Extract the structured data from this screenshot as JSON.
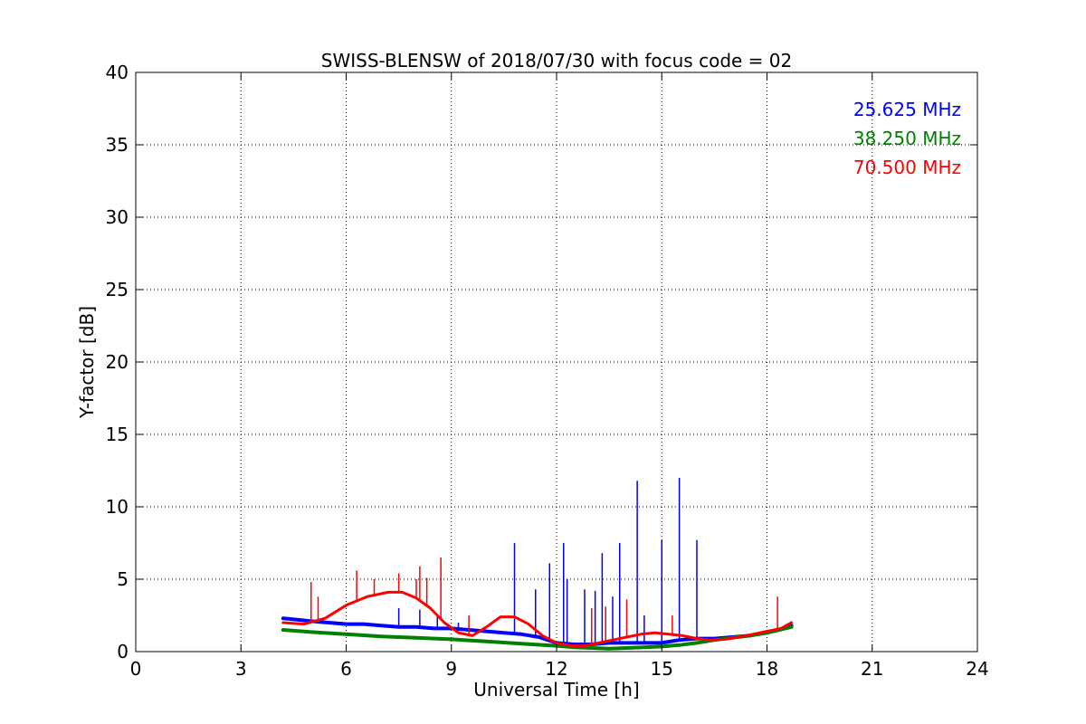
{
  "chart_data": {
    "type": "line",
    "title": "SWISS-BLENSW of 2018/07/30 with focus code = 02",
    "xlabel": "Universal Time [h]",
    "ylabel": "Y-factor [dB]",
    "xlim": [
      0,
      24
    ],
    "ylim": [
      0,
      40
    ],
    "xticks": [
      "0",
      "3",
      "6",
      "9",
      "12",
      "15",
      "18",
      "21",
      "24"
    ],
    "yticks": [
      "0",
      "5",
      "10",
      "15",
      "20",
      "25",
      "30",
      "35",
      "40"
    ],
    "grid": true,
    "grid_style": "dotted",
    "legend_position": "top-right",
    "series": [
      {
        "name": "25.625 MHz",
        "color": "#0000ff",
        "x": [
          4.2,
          4.6,
          5.0,
          5.5,
          6.0,
          6.5,
          7.0,
          7.5,
          8.0,
          8.5,
          9.0,
          9.5,
          10.0,
          10.5,
          11.0,
          11.5,
          12.0,
          12.5,
          13.0,
          13.5,
          14.0,
          14.5,
          15.0,
          15.5,
          16.0,
          16.5,
          17.0,
          17.5,
          18.0,
          18.5,
          18.7
        ],
        "y": [
          2.3,
          2.2,
          2.1,
          2.0,
          1.9,
          1.9,
          1.8,
          1.7,
          1.7,
          1.6,
          1.6,
          1.5,
          1.4,
          1.3,
          1.2,
          1.0,
          0.6,
          0.5,
          0.5,
          0.6,
          0.6,
          0.6,
          0.6,
          0.8,
          0.9,
          0.9,
          1.0,
          1.1,
          1.3,
          1.6,
          1.8
        ],
        "spikes": [
          [
            7.5,
            3.0
          ],
          [
            8.1,
            2.9
          ],
          [
            8.6,
            2.4
          ],
          [
            9.2,
            2.0
          ],
          [
            10.8,
            7.5
          ],
          [
            11.4,
            4.3
          ],
          [
            11.8,
            6.1
          ],
          [
            12.2,
            7.5
          ],
          [
            12.3,
            5.0
          ],
          [
            12.8,
            4.3
          ],
          [
            13.1,
            4.2
          ],
          [
            13.3,
            6.8
          ],
          [
            13.6,
            3.8
          ],
          [
            13.8,
            7.5
          ],
          [
            14.3,
            11.8
          ],
          [
            14.5,
            2.5
          ],
          [
            15.0,
            7.7
          ],
          [
            15.5,
            12.0
          ],
          [
            16.0,
            7.7
          ]
        ]
      },
      {
        "name": "38.250 MHz",
        "color": "#008000",
        "x": [
          4.2,
          5.0,
          6.0,
          7.0,
          8.0,
          9.0,
          10.0,
          11.0,
          12.0,
          12.5,
          13.0,
          13.5,
          14.0,
          14.5,
          15.0,
          15.5,
          16.0,
          16.5,
          17.0,
          17.5,
          18.0,
          18.7
        ],
        "y": [
          1.5,
          1.35,
          1.2,
          1.05,
          0.95,
          0.85,
          0.7,
          0.55,
          0.4,
          0.3,
          0.25,
          0.2,
          0.25,
          0.3,
          0.35,
          0.45,
          0.6,
          0.8,
          0.95,
          1.1,
          1.3,
          1.7
        ],
        "spikes": []
      },
      {
        "name": "70.500 MHz",
        "color": "#ff0000",
        "x": [
          4.2,
          4.8,
          5.4,
          6.0,
          6.6,
          7.2,
          7.6,
          8.0,
          8.4,
          8.8,
          9.2,
          9.6,
          10.0,
          10.4,
          10.8,
          11.2,
          11.6,
          12.0,
          12.4,
          12.8,
          13.2,
          13.6,
          14.0,
          14.4,
          14.8,
          15.2,
          15.6,
          16.0,
          16.4,
          16.8,
          17.2,
          17.6,
          18.0,
          18.4,
          18.7
        ],
        "y": [
          2.0,
          1.9,
          2.3,
          3.2,
          3.8,
          4.1,
          4.1,
          3.7,
          3.0,
          2.0,
          1.3,
          1.1,
          1.7,
          2.4,
          2.4,
          1.9,
          1.1,
          0.6,
          0.4,
          0.4,
          0.6,
          0.8,
          1.0,
          1.2,
          1.3,
          1.2,
          1.1,
          0.9,
          0.8,
          0.85,
          1.0,
          1.2,
          1.4,
          1.6,
          2.0
        ],
        "spikes": [
          [
            5.0,
            4.8
          ],
          [
            5.2,
            3.8
          ],
          [
            6.3,
            5.6
          ],
          [
            6.8,
            5.0
          ],
          [
            7.5,
            5.4
          ],
          [
            8.0,
            5.0
          ],
          [
            8.1,
            5.9
          ],
          [
            8.3,
            5.1
          ],
          [
            8.7,
            6.5
          ],
          [
            9.5,
            2.5
          ],
          [
            13.0,
            3.0
          ],
          [
            13.4,
            3.1
          ],
          [
            14.0,
            3.6
          ],
          [
            15.3,
            2.5
          ],
          [
            18.3,
            3.8
          ]
        ]
      }
    ]
  }
}
